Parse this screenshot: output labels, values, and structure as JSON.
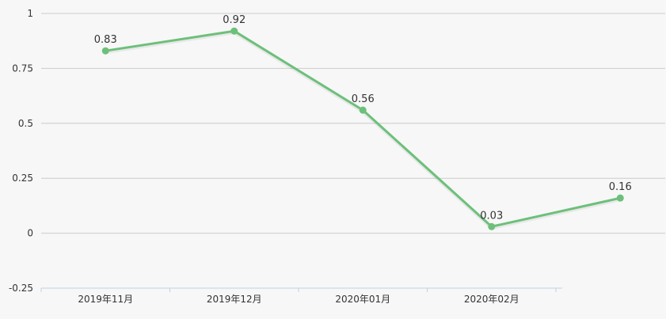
{
  "colors": {
    "background": "#f7f7f7",
    "series": "#6cc07a",
    "grid": "#cccccc",
    "axis": "#c0d0e0",
    "text": "#333333"
  },
  "chart_data": {
    "type": "line",
    "categories": [
      "2019年11月",
      "2019年12月",
      "2020年01月",
      "2020年02月",
      ""
    ],
    "series": [
      {
        "values": [
          0.83,
          0.92,
          0.56,
          0.03,
          0.16
        ]
      }
    ],
    "y_ticks": [
      "1",
      "0.75",
      "0.5",
      "0.25",
      "0",
      "-0.25"
    ],
    "y_tick_values": [
      1,
      0.75,
      0.5,
      0.25,
      0,
      -0.25
    ],
    "data_labels": [
      "0.83",
      "0.92",
      "0.56",
      "0.03",
      "0.16"
    ],
    "ylim": [
      -0.25,
      1
    ],
    "grid": true,
    "legend": "none",
    "title": "",
    "xlabel": "",
    "ylabel": ""
  }
}
